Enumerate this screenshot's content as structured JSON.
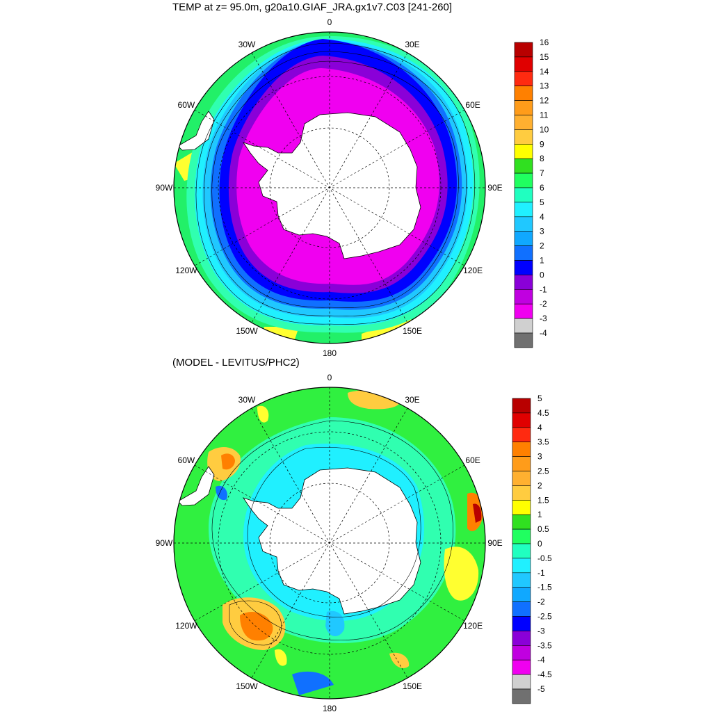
{
  "top_panel": {
    "title": "TEMP at z=  95.0m, g20a10.GIAF_JRA.gx1v7.C03 [241-260]",
    "colorbar": {
      "labels": [
        "16",
        "15",
        "14",
        "13",
        "12",
        "11",
        "10",
        "9",
        "8",
        "7",
        "6",
        "5",
        "4",
        "3",
        "2",
        "1",
        "0",
        "-1",
        "-2",
        "-3",
        "-4"
      ],
      "colors": [
        "#b80000",
        "#e00000",
        "#ff2a10",
        "#ff8000",
        "#ff9c1a",
        "#ffb030",
        "#ffcc40",
        "#ffff00",
        "#30e020",
        "#20ff60",
        "#20ffc0",
        "#20f0ff",
        "#20c8ff",
        "#10a8ff",
        "#1070ff",
        "#0000ff",
        "#8a00d8",
        "#c000e0",
        "#f000f0",
        "#d0d0d0",
        "#707070"
      ]
    },
    "longitude_labels": [
      "0",
      "30E",
      "60E",
      "90E",
      "120E",
      "150E",
      "180",
      "150W",
      "120W",
      "90W",
      "60W",
      "30W"
    ]
  },
  "bottom_panel": {
    "title": "(MODEL - LEVITUS/PHC2)",
    "colorbar": {
      "labels": [
        "5",
        "4.5",
        "4",
        "3.5",
        "3",
        "2.5",
        "2",
        "1.5",
        "1",
        "0.5",
        "0",
        "-0.5",
        "-1",
        "-1.5",
        "-2",
        "-2.5",
        "-3",
        "-3.5",
        "-4",
        "-4.5",
        "-5"
      ],
      "colors": [
        "#b80000",
        "#e00000",
        "#ff2a10",
        "#ff8000",
        "#ff9c1a",
        "#ffb030",
        "#ffcc40",
        "#ffff00",
        "#30e020",
        "#20ff60",
        "#20ffc0",
        "#20f0ff",
        "#20c8ff",
        "#10a8ff",
        "#1070ff",
        "#0000ff",
        "#8a00d8",
        "#c000e0",
        "#f000f0",
        "#d0d0d0",
        "#707070"
      ]
    },
    "longitude_labels": [
      "0",
      "30E",
      "60E",
      "90E",
      "120E",
      "150E",
      "180",
      "150W",
      "120W",
      "90W",
      "60W",
      "30W"
    ]
  }
}
